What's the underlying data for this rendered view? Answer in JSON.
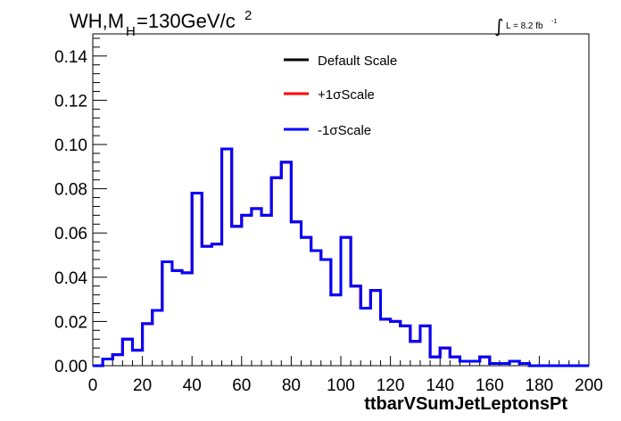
{
  "chart_data": {
    "type": "line",
    "title": {
      "main": "WH,M",
      "subscript": "H",
      "rest": "=130GeV/c",
      "superscript": "2"
    },
    "luminosity": {
      "integral": "∫",
      "text": "L = 8.2 fb",
      "superscript": "-1"
    },
    "xlabel": "ttbarVSumJetLeptonsPt",
    "ylabel": "",
    "xlim": [
      0,
      200
    ],
    "ylim": [
      0,
      0.15
    ],
    "x_ticks": [
      0,
      20,
      40,
      60,
      80,
      100,
      120,
      140,
      160,
      180,
      200
    ],
    "x_tick_labels": [
      "0",
      "20",
      "40",
      "60",
      "80",
      "100",
      "120",
      "140",
      "160",
      "180",
      "200"
    ],
    "y_ticks": [
      0,
      0.02,
      0.04,
      0.06,
      0.08,
      0.1,
      0.12,
      0.14
    ],
    "y_tick_labels": [
      "0.00",
      "0.02",
      "0.04",
      "0.06",
      "0.08",
      "0.10",
      "0.12",
      "0.14"
    ],
    "grid": false,
    "legend_position": "top-center",
    "series": [
      {
        "name": "Default Scale",
        "color": "#000000",
        "bin_width": 4,
        "bin_edges_start": 0,
        "values": [
          0.0,
          0.003,
          0.005,
          0.012,
          0.007,
          0.019,
          0.025,
          0.047,
          0.043,
          0.042,
          0.078,
          0.054,
          0.055,
          0.098,
          0.063,
          0.068,
          0.071,
          0.068,
          0.085,
          0.092,
          0.065,
          0.058,
          0.052,
          0.048,
          0.032,
          0.058,
          0.036,
          0.026,
          0.034,
          0.021,
          0.02,
          0.018,
          0.011,
          0.018,
          0.004,
          0.008,
          0.004,
          0.002,
          0.002,
          0.004,
          0.001,
          0.001,
          0.002,
          0.001,
          0.0,
          0.0,
          0.0,
          0.0,
          0.0,
          0.0
        ]
      },
      {
        "name": "+1σScale",
        "color": "#ff0000",
        "bin_width": 4,
        "bin_edges_start": 0,
        "values": [
          0.0,
          0.003,
          0.005,
          0.012,
          0.007,
          0.019,
          0.025,
          0.047,
          0.043,
          0.042,
          0.078,
          0.054,
          0.055,
          0.098,
          0.063,
          0.068,
          0.071,
          0.068,
          0.085,
          0.092,
          0.065,
          0.058,
          0.052,
          0.048,
          0.032,
          0.058,
          0.036,
          0.026,
          0.034,
          0.021,
          0.02,
          0.018,
          0.011,
          0.018,
          0.004,
          0.008,
          0.004,
          0.002,
          0.002,
          0.004,
          0.001,
          0.001,
          0.002,
          0.001,
          0.0,
          0.0,
          0.0,
          0.0,
          0.0,
          0.0
        ]
      },
      {
        "name": "-1σScale",
        "color": "#0000ff",
        "bin_width": 4,
        "bin_edges_start": 0,
        "values": [
          0.0,
          0.003,
          0.005,
          0.012,
          0.007,
          0.019,
          0.025,
          0.047,
          0.043,
          0.042,
          0.078,
          0.054,
          0.055,
          0.098,
          0.063,
          0.068,
          0.071,
          0.068,
          0.085,
          0.092,
          0.065,
          0.058,
          0.052,
          0.048,
          0.032,
          0.058,
          0.036,
          0.026,
          0.034,
          0.021,
          0.02,
          0.018,
          0.011,
          0.018,
          0.004,
          0.008,
          0.004,
          0.002,
          0.002,
          0.004,
          0.001,
          0.001,
          0.002,
          0.001,
          0.0,
          0.0,
          0.0,
          0.0,
          0.0,
          0.0
        ]
      }
    ]
  }
}
